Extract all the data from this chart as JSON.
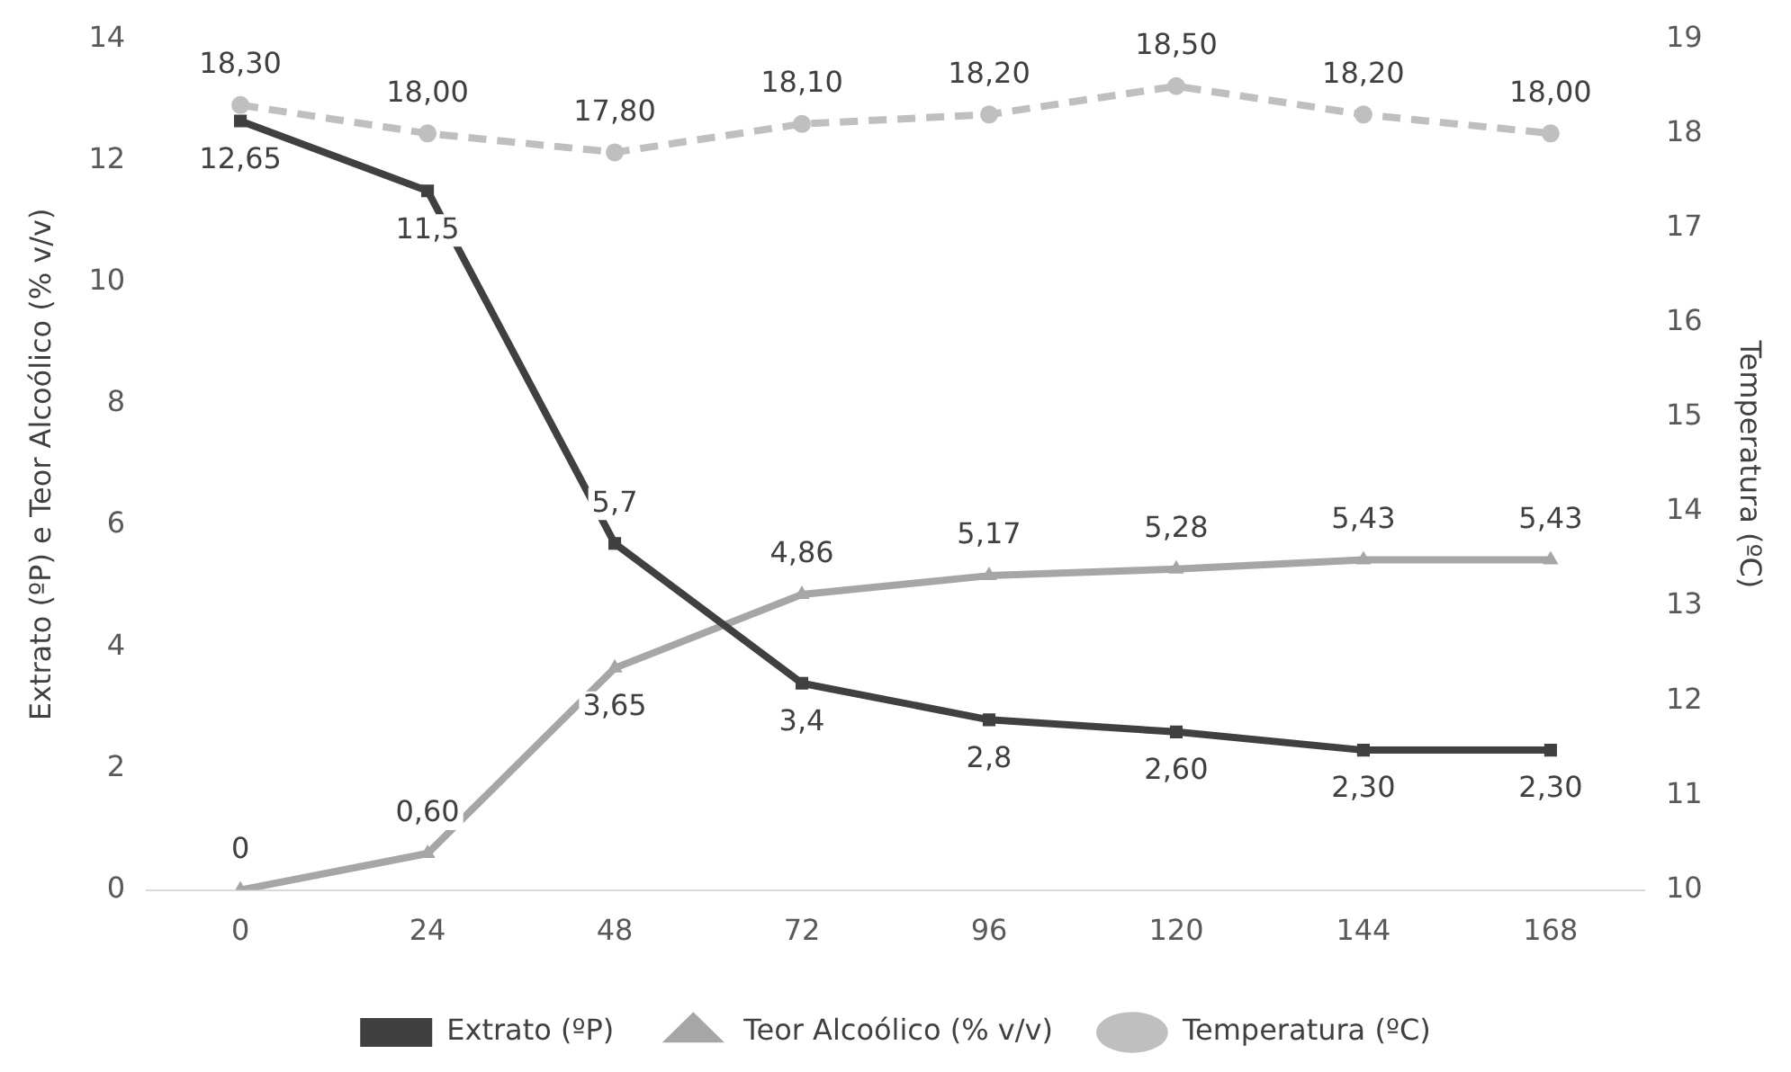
{
  "chart_data": {
    "type": "line",
    "xlabel": null,
    "ylabel": "Extrato (ºP) e Teor Alcoólico (% v/v)",
    "y2label": "Temperatura (ºC)",
    "categories": [
      "0",
      "24",
      "48",
      "72",
      "96",
      "120",
      "144",
      "168"
    ],
    "series": [
      {
        "name": "Extrato (ºP)",
        "color": "#404040",
        "marker": "square",
        "line_style": "solid",
        "values": [
          12.65,
          11.5,
          5.7,
          3.4,
          2.8,
          2.6,
          2.3,
          2.3
        ],
        "value_labels": [
          "12,65",
          "11,5",
          "5,7",
          "3,4",
          "2,8",
          "2,60",
          "2,30",
          "2,30"
        ]
      },
      {
        "name": "Teor Alcoólico (% v/v)",
        "color": "#a6a6a6",
        "marker": "triangle",
        "line_style": "solid",
        "values": [
          0,
          0.6,
          3.65,
          4.86,
          5.17,
          5.28,
          5.43,
          5.43
        ],
        "value_labels": [
          "0",
          "0,60",
          "3,65",
          "4,86",
          "5,17",
          "5,28",
          "5,43",
          "5,43"
        ]
      },
      {
        "name": "Temperatura (ºC)",
        "color": "#bfbfbf",
        "marker": "circle",
        "line_style": "dashed",
        "axis": "y2",
        "values": [
          18.3,
          18.0,
          17.8,
          18.1,
          18.2,
          18.5,
          18.2,
          18.0
        ],
        "value_labels": [
          "18,30",
          "18,00",
          "17,80",
          "18,10",
          "18,20",
          "18,50",
          "18,20",
          "18,00"
        ]
      }
    ],
    "ylim": [
      0,
      14
    ],
    "yticks": [
      0,
      2,
      4,
      6,
      8,
      10,
      12,
      14
    ],
    "y2lim": [
      10,
      19
    ],
    "y2ticks": [
      10,
      11,
      12,
      13,
      14,
      15,
      16,
      17,
      18,
      19
    ],
    "grid": false,
    "legend": "bottom"
  }
}
